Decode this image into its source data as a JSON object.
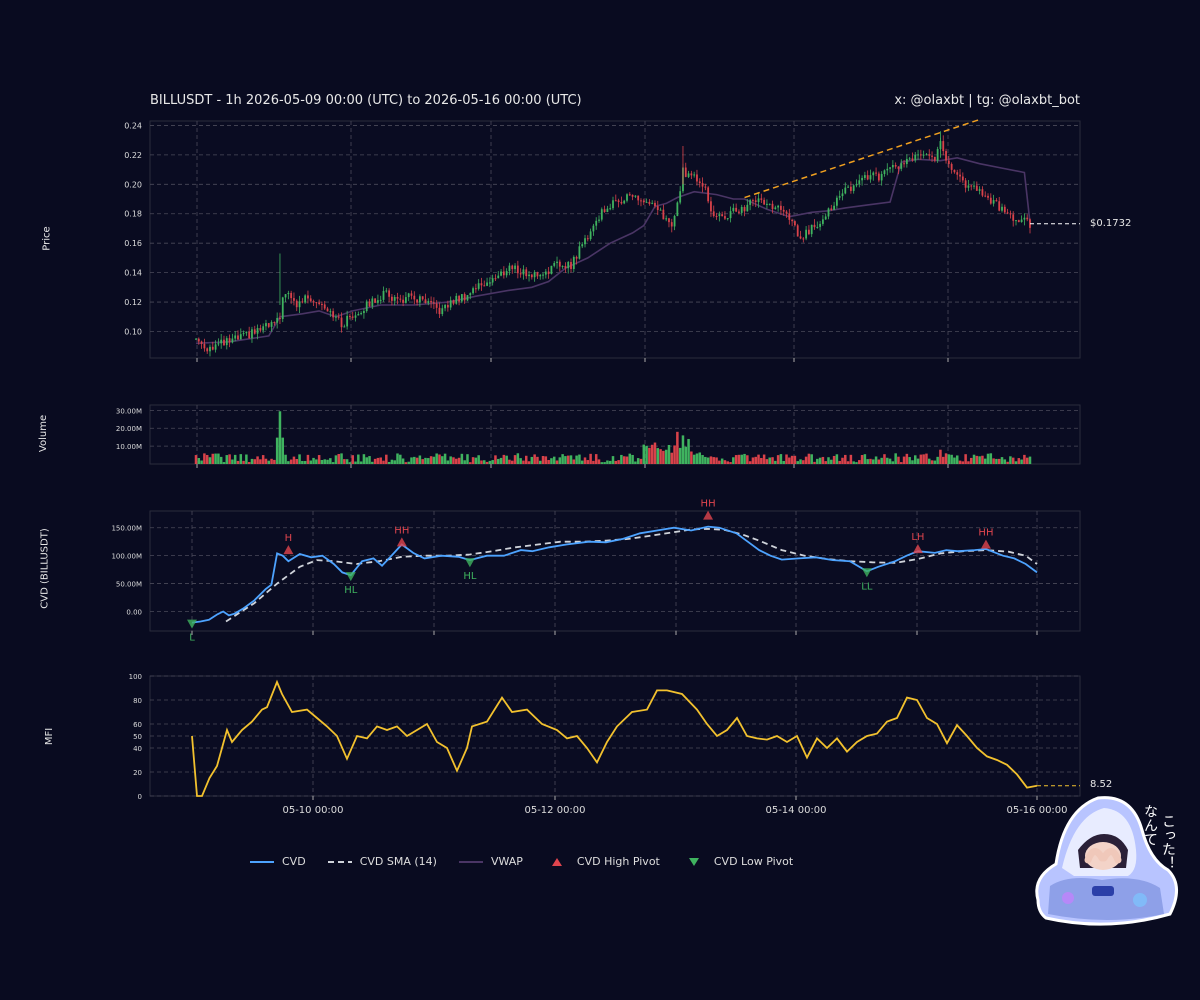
{
  "header": {
    "title": "BILLUSDT - 1h 2026-05-09 00:00 (UTC) to 2026-05-16 00:00 (UTC)",
    "credit": "x: @olaxbt | tg: @olaxbt_bot"
  },
  "panels": {
    "price_label": "Price",
    "volume_label": "Volume",
    "cvd_label": "CVD (BILLUSDT)",
    "mfi_label": "MFI"
  },
  "last_price_label": "$0.1732",
  "last_mfi_label": "8.52",
  "legend": {
    "cvd": "CVD",
    "cvd_sma": "CVD SMA (14)",
    "vwap": "VWAP",
    "high_pivot": "CVD High Pivot",
    "low_pivot": "CVD Low Pivot"
  },
  "sticker_text": [
    "こった！",
    "なんて"
  ],
  "colors": {
    "background": "#090b20",
    "grid": "#4a4a5a",
    "up": "#3fb35f",
    "down": "#d9424a",
    "vwap": "#4a3565",
    "cvd": "#4da3ff",
    "cvd_sma": "#cfd3da",
    "mfi": "#f2c12e",
    "trendline": "#f0a020",
    "pivot_high": "#e0454e",
    "pivot_low": "#3fb35f"
  },
  "chart_data": [
    {
      "type": "candlestick",
      "name": "Price",
      "x_ticks": [
        "05-10 00:00",
        "05-12 00:00",
        "05-14 00:00",
        "05-16 00:00"
      ],
      "ylim": [
        0.082,
        0.243
      ],
      "y_ticks": [
        0.1,
        0.12,
        0.14,
        0.16,
        0.18,
        0.2,
        0.22,
        0.24
      ],
      "grid": true,
      "close_path": [
        [
          0,
          0.095
        ],
        [
          4,
          0.089
        ],
        [
          10,
          0.092
        ],
        [
          18,
          0.097
        ],
        [
          25,
          0.103
        ],
        [
          30,
          0.107
        ],
        [
          31,
          0.126
        ],
        [
          34,
          0.122
        ],
        [
          36,
          0.118
        ],
        [
          40,
          0.124
        ],
        [
          46,
          0.118
        ],
        [
          49,
          0.112
        ],
        [
          52,
          0.104
        ],
        [
          55,
          0.11
        ],
        [
          60,
          0.116
        ],
        [
          64,
          0.122
        ],
        [
          68,
          0.126
        ],
        [
          72,
          0.121
        ],
        [
          76,
          0.123
        ],
        [
          80,
          0.121
        ],
        [
          84,
          0.117
        ],
        [
          88,
          0.114
        ],
        [
          92,
          0.121
        ],
        [
          96,
          0.124
        ],
        [
          100,
          0.13
        ],
        [
          104,
          0.134
        ],
        [
          108,
          0.137
        ],
        [
          112,
          0.144
        ],
        [
          116,
          0.141
        ],
        [
          120,
          0.138
        ],
        [
          124,
          0.14
        ],
        [
          128,
          0.144
        ],
        [
          132,
          0.146
        ],
        [
          134,
          0.145
        ],
        [
          138,
          0.159
        ],
        [
          142,
          0.172
        ],
        [
          146,
          0.184
        ],
        [
          150,
          0.187
        ],
        [
          154,
          0.193
        ],
        [
          158,
          0.19
        ],
        [
          162,
          0.186
        ],
        [
          166,
          0.18
        ],
        [
          170,
          0.172
        ],
        [
          172,
          0.185
        ],
        [
          174,
          0.209
        ],
        [
          178,
          0.205
        ],
        [
          182,
          0.2
        ],
        [
          184,
          0.18
        ],
        [
          188,
          0.177
        ],
        [
          192,
          0.181
        ],
        [
          196,
          0.184
        ],
        [
          200,
          0.19
        ],
        [
          204,
          0.187
        ],
        [
          208,
          0.183
        ],
        [
          212,
          0.177
        ],
        [
          216,
          0.163
        ],
        [
          220,
          0.17
        ],
        [
          224,
          0.178
        ],
        [
          228,
          0.187
        ],
        [
          232,
          0.195
        ],
        [
          236,
          0.201
        ],
        [
          240,
          0.206
        ],
        [
          244,
          0.204
        ],
        [
          248,
          0.21
        ],
        [
          252,
          0.213
        ],
        [
          256,
          0.217
        ],
        [
          260,
          0.22
        ],
        [
          264,
          0.218
        ],
        [
          266,
          0.231
        ],
        [
          268,
          0.219
        ],
        [
          270,
          0.208
        ],
        [
          274,
          0.201
        ],
        [
          278,
          0.197
        ],
        [
          282,
          0.192
        ],
        [
          286,
          0.186
        ],
        [
          290,
          0.179
        ],
        [
          294,
          0.176
        ],
        [
          298,
          0.1732
        ]
      ],
      "vwap": [
        [
          0,
          0.092
        ],
        [
          12,
          0.093
        ],
        [
          26,
          0.097
        ],
        [
          30,
          0.11
        ],
        [
          38,
          0.112
        ],
        [
          44,
          0.114
        ],
        [
          50,
          0.11
        ],
        [
          56,
          0.114
        ],
        [
          66,
          0.118
        ],
        [
          78,
          0.118
        ],
        [
          90,
          0.12
        ],
        [
          100,
          0.124
        ],
        [
          112,
          0.128
        ],
        [
          120,
          0.13
        ],
        [
          126,
          0.134
        ],
        [
          132,
          0.143
        ],
        [
          140,
          0.15
        ],
        [
          148,
          0.16
        ],
        [
          156,
          0.167
        ],
        [
          160,
          0.172
        ],
        [
          164,
          0.185
        ],
        [
          168,
          0.187
        ],
        [
          172,
          0.191
        ],
        [
          178,
          0.195
        ],
        [
          186,
          0.193
        ],
        [
          192,
          0.19
        ],
        [
          196,
          0.19
        ],
        [
          204,
          0.183
        ],
        [
          212,
          0.178
        ],
        [
          220,
          0.181
        ],
        [
          226,
          0.182
        ],
        [
          232,
          0.184
        ],
        [
          240,
          0.186
        ],
        [
          248,
          0.188
        ],
        [
          252,
          0.215
        ],
        [
          258,
          0.217
        ],
        [
          266,
          0.216
        ],
        [
          272,
          0.218
        ],
        [
          280,
          0.214
        ],
        [
          288,
          0.211
        ],
        [
          296,
          0.208
        ],
        [
          298,
          0.174
        ]
      ],
      "trendline": {
        "from": [
          196,
          0.191
        ],
        "to": [
          280,
          0.244
        ]
      },
      "last_price": 0.1732
    },
    {
      "type": "bar",
      "name": "Volume",
      "ylim": [
        0,
        33
      ],
      "y_ticks": [
        10,
        20,
        30
      ],
      "y_tick_labels": [
        "10.00M",
        "20.00M",
        "30.00M"
      ],
      "unit": "M",
      "peak_values": [
        [
          30,
          29.5
        ],
        [
          172,
          18
        ],
        [
          174,
          16
        ],
        [
          176,
          14
        ],
        [
          164,
          12
        ],
        [
          266,
          8
        ]
      ],
      "baseline_range": [
        1,
        6
      ]
    },
    {
      "type": "line",
      "name": "CVD",
      "ylim": [
        -35,
        180
      ],
      "y_ticks": [
        0,
        50,
        100,
        150
      ],
      "y_tick_labels": [
        "0.00",
        "50.00M",
        "100.00M",
        "150.00M"
      ],
      "cvd": [
        [
          0,
          -20
        ],
        [
          3,
          -18
        ],
        [
          6,
          -15
        ],
        [
          9,
          -5
        ],
        [
          11,
          0
        ],
        [
          13,
          -7
        ],
        [
          15,
          -4
        ],
        [
          18,
          5
        ],
        [
          22,
          20
        ],
        [
          26,
          40
        ],
        [
          28,
          48
        ],
        [
          30,
          104
        ],
        [
          32,
          100
        ],
        [
          34,
          90
        ],
        [
          38,
          103
        ],
        [
          42,
          97
        ],
        [
          46,
          100
        ],
        [
          50,
          85
        ],
        [
          53,
          70
        ],
        [
          56,
          65
        ],
        [
          60,
          90
        ],
        [
          64,
          95
        ],
        [
          67,
          82
        ],
        [
          70,
          98
        ],
        [
          74,
          120
        ],
        [
          78,
          105
        ],
        [
          82,
          95
        ],
        [
          88,
          100
        ],
        [
          94,
          98
        ],
        [
          98,
          92
        ],
        [
          104,
          100
        ],
        [
          110,
          100
        ],
        [
          116,
          110
        ],
        [
          120,
          108
        ],
        [
          126,
          115
        ],
        [
          132,
          120
        ],
        [
          140,
          125
        ],
        [
          146,
          124
        ],
        [
          152,
          130
        ],
        [
          158,
          140
        ],
        [
          164,
          145
        ],
        [
          170,
          150
        ],
        [
          176,
          145
        ],
        [
          182,
          152
        ],
        [
          186,
          150
        ],
        [
          192,
          140
        ],
        [
          196,
          125
        ],
        [
          200,
          110
        ],
        [
          204,
          100
        ],
        [
          208,
          93
        ],
        [
          214,
          95
        ],
        [
          220,
          97
        ],
        [
          226,
          92
        ],
        [
          232,
          90
        ],
        [
          238,
          72
        ],
        [
          242,
          80
        ],
        [
          248,
          90
        ],
        [
          252,
          100
        ],
        [
          256,
          108
        ],
        [
          262,
          105
        ],
        [
          266,
          110
        ],
        [
          270,
          108
        ],
        [
          276,
          110
        ],
        [
          280,
          112
        ],
        [
          286,
          100
        ],
        [
          290,
          95
        ],
        [
          294,
          85
        ],
        [
          298,
          70
        ]
      ],
      "cvd_sma": [
        [
          12,
          -18
        ],
        [
          22,
          15
        ],
        [
          30,
          50
        ],
        [
          38,
          80
        ],
        [
          44,
          92
        ],
        [
          50,
          90
        ],
        [
          58,
          85
        ],
        [
          66,
          90
        ],
        [
          74,
          98
        ],
        [
          82,
          100
        ],
        [
          90,
          100
        ],
        [
          98,
          102
        ],
        [
          106,
          108
        ],
        [
          114,
          115
        ],
        [
          122,
          120
        ],
        [
          130,
          125
        ],
        [
          138,
          125
        ],
        [
          146,
          127
        ],
        [
          154,
          130
        ],
        [
          162,
          136
        ],
        [
          170,
          142
        ],
        [
          176,
          147
        ],
        [
          182,
          148
        ],
        [
          188,
          146
        ],
        [
          194,
          138
        ],
        [
          200,
          127
        ],
        [
          208,
          110
        ],
        [
          216,
          100
        ],
        [
          224,
          94
        ],
        [
          232,
          90
        ],
        [
          240,
          88
        ],
        [
          248,
          87
        ],
        [
          256,
          94
        ],
        [
          264,
          104
        ],
        [
          272,
          108
        ],
        [
          280,
          110
        ],
        [
          288,
          107
        ],
        [
          294,
          100
        ],
        [
          298,
          85
        ]
      ],
      "pivots": [
        {
          "x": 0,
          "y": -20,
          "type": "low",
          "label": "L"
        },
        {
          "x": 34,
          "y": 108,
          "type": "high",
          "label": "H"
        },
        {
          "x": 56,
          "y": 65,
          "type": "low",
          "label": "HL"
        },
        {
          "x": 74,
          "y": 122,
          "type": "high",
          "label": "HH"
        },
        {
          "x": 98,
          "y": 90,
          "type": "low",
          "label": "HL"
        },
        {
          "x": 182,
          "y": 170,
          "type": "high",
          "label": "HH"
        },
        {
          "x": 238,
          "y": 72,
          "type": "low",
          "label": "LL"
        },
        {
          "x": 256,
          "y": 110,
          "type": "high",
          "label": "LH"
        },
        {
          "x": 280,
          "y": 118,
          "type": "high",
          "label": "HH"
        }
      ]
    },
    {
      "type": "line",
      "name": "MFI",
      "ylim": [
        0,
        100
      ],
      "y_ticks": [
        0,
        20,
        40,
        50,
        60,
        80,
        100
      ],
      "mfi": [
        [
          0,
          50
        ],
        [
          2,
          0
        ],
        [
          4,
          0
        ],
        [
          7,
          15
        ],
        [
          10,
          25
        ],
        [
          14,
          55
        ],
        [
          16,
          45
        ],
        [
          20,
          55
        ],
        [
          24,
          62
        ],
        [
          28,
          72
        ],
        [
          30,
          74
        ],
        [
          34,
          95
        ],
        [
          36,
          85
        ],
        [
          40,
          70
        ],
        [
          46,
          72
        ],
        [
          50,
          65
        ],
        [
          54,
          58
        ],
        [
          58,
          50
        ],
        [
          62,
          31
        ],
        [
          66,
          50
        ],
        [
          70,
          48
        ],
        [
          74,
          58
        ],
        [
          78,
          55
        ],
        [
          82,
          58
        ],
        [
          86,
          50
        ],
        [
          90,
          55
        ],
        [
          94,
          60
        ],
        [
          98,
          45
        ],
        [
          102,
          40
        ],
        [
          106,
          21
        ],
        [
          110,
          40
        ],
        [
          112,
          58
        ],
        [
          118,
          62
        ],
        [
          124,
          82
        ],
        [
          128,
          70
        ],
        [
          134,
          72
        ],
        [
          140,
          60
        ],
        [
          146,
          55
        ],
        [
          150,
          48
        ],
        [
          154,
          50
        ],
        [
          158,
          40
        ],
        [
          162,
          28
        ],
        [
          166,
          45
        ],
        [
          170,
          58
        ],
        [
          176,
          70
        ],
        [
          182,
          72
        ],
        [
          186,
          88
        ],
        [
          190,
          88
        ],
        [
          196,
          85
        ],
        [
          202,
          72
        ],
        [
          206,
          60
        ],
        [
          210,
          50
        ],
        [
          214,
          55
        ],
        [
          218,
          65
        ],
        [
          222,
          50
        ],
        [
          226,
          48
        ],
        [
          230,
          47
        ],
        [
          234,
          50
        ],
        [
          238,
          45
        ],
        [
          242,
          50
        ],
        [
          246,
          32
        ],
        [
          250,
          48
        ],
        [
          254,
          40
        ],
        [
          258,
          48
        ],
        [
          262,
          37
        ],
        [
          266,
          45
        ],
        [
          270,
          50
        ],
        [
          274,
          52
        ],
        [
          278,
          62
        ],
        [
          282,
          65
        ],
        [
          286,
          82
        ],
        [
          290,
          80
        ],
        [
          294,
          65
        ],
        [
          298,
          60
        ],
        [
          302,
          44
        ],
        [
          306,
          59
        ],
        [
          310,
          50
        ],
        [
          314,
          40
        ],
        [
          318,
          33
        ],
        [
          322,
          30
        ],
        [
          326,
          26
        ],
        [
          330,
          18
        ],
        [
          334,
          7
        ],
        [
          338,
          8.52
        ]
      ],
      "last_value": 8.52
    }
  ]
}
